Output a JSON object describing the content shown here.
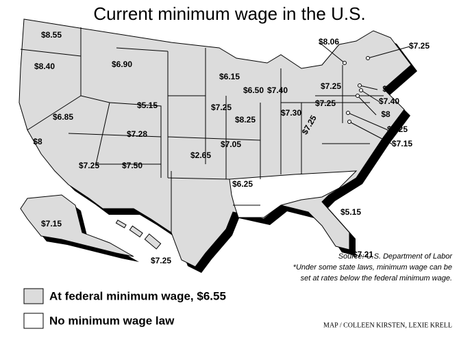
{
  "title": "Current minimum wage in the U.S.",
  "wage_labels": [
    "$8.55",
    "$8.40",
    "$6.90",
    "$6.15",
    "$6.50",
    "$7.40",
    "$8.06",
    "$7.25",
    "$7.25",
    "$8",
    "$7.40",
    "$8",
    "$7.25",
    "$7.15",
    "$5.15",
    "$7.25",
    "$8.25",
    "$7.30",
    "$7.25",
    "$7.25",
    "$6.85",
    "$7.28",
    "$7.05",
    "$8",
    "$2.65",
    "$7.25",
    "$7.50",
    "$6.25",
    "$5.15",
    "$7.15",
    "$7.21",
    "$7.25"
  ],
  "source": "Source:  U.S. Department of Labor",
  "note_lines": [
    "*Under some state laws, minimum wage can be",
    "set at rates below the federal minimum wage."
  ],
  "legend": [
    "At federal minimum wage, $6.55",
    "No minimum wage law"
  ],
  "credit": "MAP / COLLEEN KIRSTEN, LEXIE KRELL"
}
